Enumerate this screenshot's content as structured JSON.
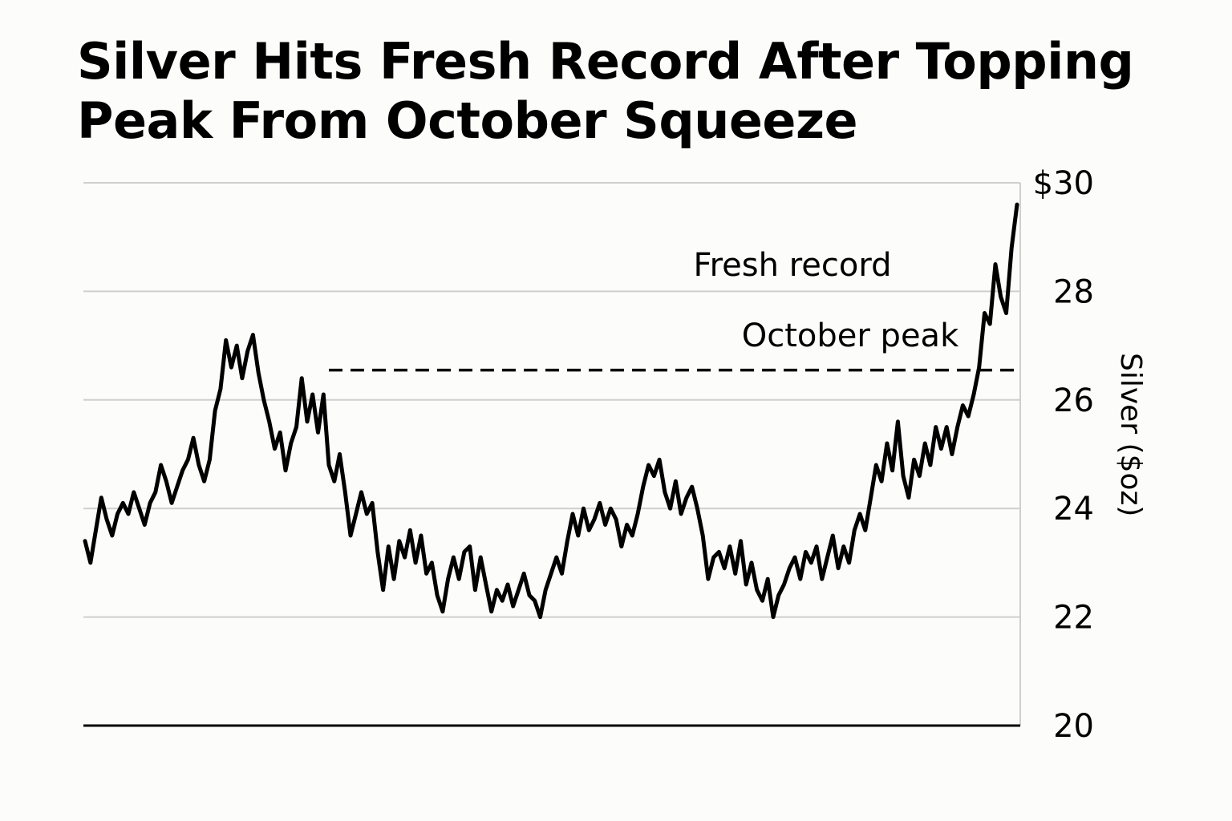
{
  "chart_data": {
    "type": "line",
    "title": "Silver Hits Fresh Record After Topping Peak From October Squeeze",
    "xlabel": "",
    "ylabel": "Silver ($oz)",
    "ylim": [
      20,
      30
    ],
    "y_ticks": [
      "$30",
      "28",
      "26",
      "24",
      "22",
      "20"
    ],
    "y_tick_values": [
      30,
      28,
      26,
      24,
      22,
      20
    ],
    "grid": true,
    "series": [
      {
        "values": [
          23.4,
          23.0,
          23.6,
          24.2,
          23.8,
          23.5,
          23.9,
          24.1,
          23.9,
          24.3,
          24.0,
          23.7,
          24.1,
          24.3,
          24.8,
          24.5,
          24.1,
          24.4,
          24.7,
          24.9,
          25.3,
          24.8,
          24.5,
          24.9,
          25.8,
          26.2,
          27.1,
          26.6,
          27.0,
          26.4,
          26.9,
          27.2,
          26.5,
          26.0,
          25.6,
          25.1,
          25.4,
          24.7,
          25.2,
          25.5,
          26.4,
          25.6,
          26.1,
          25.4,
          26.1,
          24.8,
          24.5,
          25.0,
          24.3,
          23.5,
          23.9,
          24.3,
          23.9,
          24.1,
          23.2,
          22.5,
          23.3,
          22.7,
          23.4,
          23.1,
          23.6,
          23.0,
          23.5,
          22.8,
          23.0,
          22.4,
          22.1,
          22.7,
          23.1,
          22.7,
          23.2,
          23.3,
          22.5,
          23.1,
          22.6,
          22.1,
          22.5,
          22.3,
          22.6,
          22.2,
          22.5,
          22.8,
          22.4,
          22.3,
          22.0,
          22.5,
          22.8,
          23.1,
          22.8,
          23.4,
          23.9,
          23.5,
          24.0,
          23.6,
          23.8,
          24.1,
          23.7,
          24.0,
          23.8,
          23.3,
          23.7,
          23.5,
          23.9,
          24.4,
          24.8,
          24.6,
          24.9,
          24.3,
          24.0,
          24.5,
          23.9,
          24.2,
          24.4,
          24.0,
          23.5,
          22.7,
          23.1,
          23.2,
          22.9,
          23.3,
          22.8,
          23.4,
          22.6,
          23.0,
          22.5,
          22.3,
          22.7,
          22.0,
          22.4,
          22.6,
          22.9,
          23.1,
          22.7,
          23.2,
          23.0,
          23.3,
          22.7,
          23.1,
          23.5,
          22.9,
          23.3,
          23.0,
          23.6,
          23.9,
          23.6,
          24.2,
          24.8,
          24.5,
          25.2,
          24.7,
          25.6,
          24.6,
          24.2,
          24.9,
          24.6,
          25.2,
          24.8,
          25.5,
          25.1,
          25.5,
          25.0,
          25.5,
          25.9,
          25.7,
          26.1,
          26.6,
          27.6,
          27.4,
          28.5,
          27.9,
          27.6,
          28.8,
          29.6
        ]
      }
    ],
    "annotations": [
      {
        "text": "Fresh record"
      },
      {
        "text": "October peak",
        "y": 26.55,
        "style": "dashed"
      }
    ]
  }
}
